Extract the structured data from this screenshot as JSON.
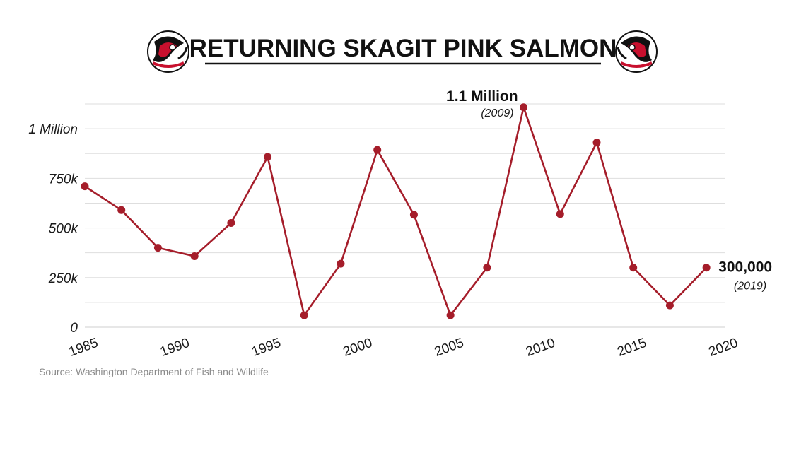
{
  "chart_data": {
    "type": "line",
    "title": "RETURNING SKAGIT PINK SALMON",
    "source": "Source: Washington Department of Fish and Wildlife",
    "x": [
      1985,
      1987,
      1989,
      1991,
      1993,
      1995,
      1997,
      1999,
      2001,
      2003,
      2005,
      2007,
      2009,
      2011,
      2013,
      2015,
      2017,
      2019
    ],
    "values": [
      710000,
      590000,
      400000,
      358000,
      525000,
      858000,
      60000,
      320000,
      893000,
      567000,
      60000,
      300000,
      1108000,
      570000,
      930000,
      300000,
      110000,
      300000
    ],
    "xlim": [
      1985,
      2020
    ],
    "ylim": [
      0,
      1150000
    ],
    "x_ticks": [
      1985,
      1990,
      1995,
      2000,
      2005,
      2010,
      2015,
      2020
    ],
    "x_tick_labels": [
      "1985",
      "1990",
      "1995",
      "2000",
      "2005",
      "2010",
      "2015",
      "2020"
    ],
    "y_ticks": [
      0,
      250000,
      500000,
      750000,
      1000000
    ],
    "y_tick_labels": [
      "0",
      "250k",
      "500k",
      "750k",
      "1 Million"
    ],
    "grid": true,
    "line_color": "#a51d2a",
    "annotations": [
      {
        "x": 2009,
        "y": 1108000,
        "label": "1.1 Million",
        "sublabel": "(2009)"
      },
      {
        "x": 2019,
        "y": 300000,
        "label": "300,000",
        "sublabel": "(2019)"
      }
    ]
  }
}
